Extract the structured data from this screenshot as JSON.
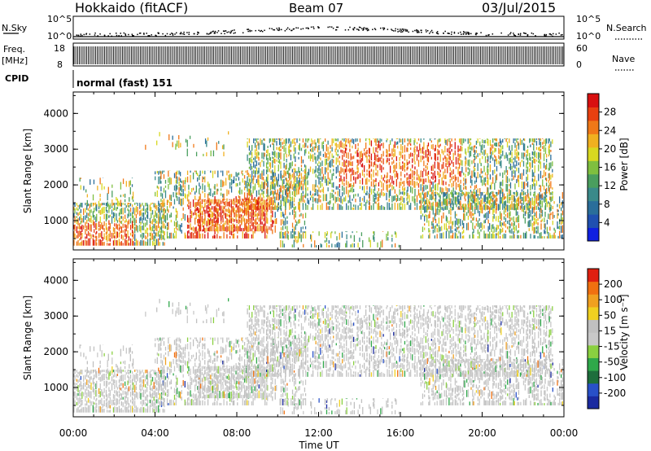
{
  "header": {
    "radar": "Hokkaido (fitACF)",
    "beam": "Beam 07",
    "date": "03/Jul/2015"
  },
  "strip": {
    "nsky_label": "N.Sky",
    "nsky_ticks": [
      "10^5",
      "10^0"
    ],
    "nsearch_label": "N.Search",
    "nsearch_ticks": [
      "10^5",
      "10^0"
    ],
    "freq_label_line1": "Freq.",
    "freq_label_line2": "[MHz]",
    "freq_ticks": [
      "18",
      "8"
    ],
    "nave_label": "Nave",
    "nave_ticks": [
      "60",
      "0"
    ],
    "cpid_label": "CPID",
    "cpid_value": "normal (fast) 151"
  },
  "colors": {
    "power": [
      "#1020e0",
      "#2050b0",
      "#2a6e9a",
      "#3a8a8a",
      "#4a9e5e",
      "#7fbf3f",
      "#d8d820",
      "#f0b020",
      "#f07818",
      "#e84010",
      "#d81010"
    ],
    "velocity": [
      "#1a2aa0",
      "#2850c8",
      "#1e6e3c",
      "#2fa84a",
      "#8ad040",
      "#c8c8c8",
      "#c0c0c0",
      "#f0d020",
      "#f0a020",
      "#f07010",
      "#e02010"
    ]
  },
  "chart_data": [
    {
      "type": "heatmap",
      "name": "power",
      "ylabel": "Slant Range [km]",
      "yticks": [
        "4000",
        "3000",
        "2000",
        "1000"
      ],
      "ylim": [
        180,
        4600
      ],
      "colorbar_label": "Power [dB]",
      "colorbar_ticks": [
        "28",
        "24",
        "20",
        "16",
        "12",
        "8",
        "4"
      ],
      "clim": [
        0,
        30
      ]
    },
    {
      "type": "heatmap",
      "name": "velocity",
      "ylabel": "Slant Range [km]",
      "yticks": [
        "4000",
        "3000",
        "2000",
        "1000"
      ],
      "ylim": [
        180,
        4600
      ],
      "colorbar_label": "Velocity [m s⁻¹]",
      "colorbar_ticks": [
        "200",
        "100",
        "50",
        "15",
        "-15",
        "-50",
        "-100",
        "-200"
      ],
      "clim": [
        -250,
        250
      ]
    }
  ],
  "xaxis": {
    "label": "Time UT",
    "ticks": [
      "00:00",
      "04:00",
      "08:00",
      "12:00",
      "16:00",
      "20:00",
      "00:00"
    ],
    "xlim_hours": [
      0,
      24
    ]
  }
}
